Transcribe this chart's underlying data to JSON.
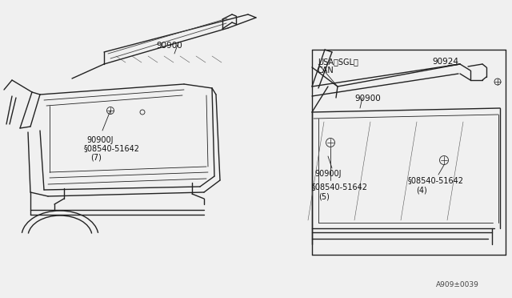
{
  "bg_color": "#f0f0f0",
  "line_color": "#222222",
  "text_color": "#111111",
  "fig_width": 6.4,
  "fig_height": 3.72,
  "dpi": 100,
  "watermark": "A909±0039",
  "left_label_90900": "90900",
  "left_label_90900J": "90900J",
  "left_label_screw_s": "§",
  "left_label_screw": "08540-51642",
  "left_label_screw_n": "(7)",
  "right_label_usa": "USA〈SGL〉",
  "right_label_can": "CAN",
  "right_label_90924": "90924",
  "right_label_90900": "90900",
  "right_label_90900J": "90900J",
  "right_label_screw1_s": "§",
  "right_label_screw1": "08540-51642",
  "right_label_screw1_n": "(5)",
  "right_label_screw2_s": "§",
  "right_label_screw2": "08540-51642",
  "right_label_screw2_n": "(4)"
}
